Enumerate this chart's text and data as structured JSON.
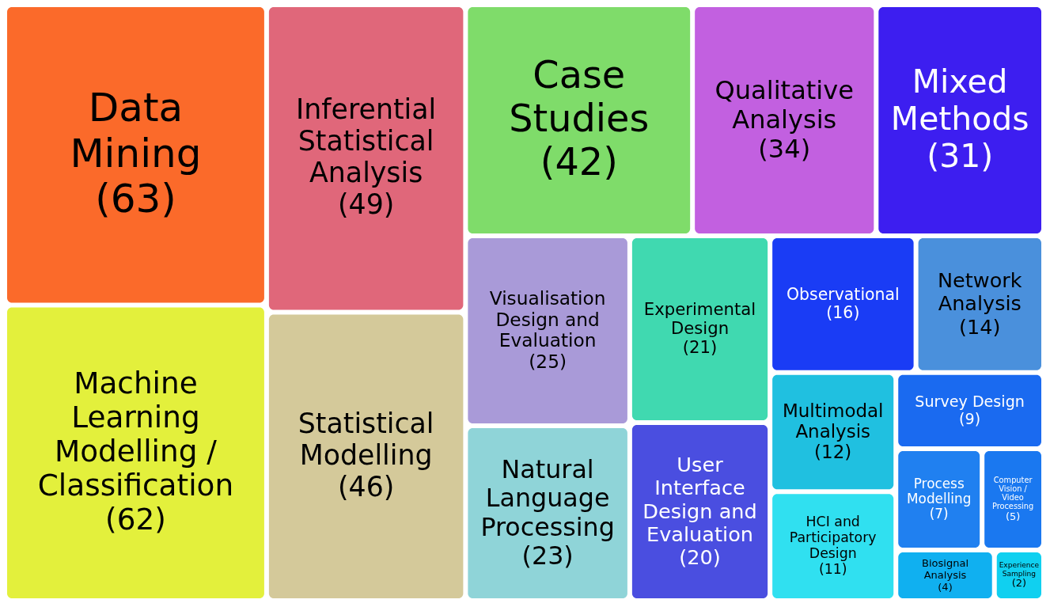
{
  "chart_data": {
    "type": "other",
    "categories": [
      "Data Mining",
      "Machine Learning Modelling / Classification",
      "Inferential Statistical Analysis",
      "Statistical Modelling",
      "Case Studies",
      "Qualitative Analysis",
      "Mixed Methods",
      "Visualisation Design and Evaluation",
      "Natural Language Processing",
      "Experimental Design",
      "User Interface Design and Evaluation",
      "Observational",
      "Network Analysis",
      "Multimodal Analysis",
      "HCI and Participatory Design",
      "Survey Design",
      "Process Modelling",
      "Computer Vision / Video Processing",
      "Biosignal Analysis",
      "Experience Sampling"
    ],
    "value_labels": [
      "(63)",
      "(62)",
      "(49)",
      "(46)",
      "(42)",
      "(34)",
      "(31)",
      "(25)",
      "(23)",
      "(21)",
      "(20)",
      "(16)",
      "(14)",
      "(12)",
      "(11)",
      "(9)",
      "(7)",
      "(5)",
      "(4)",
      "(2)"
    ],
    "values": [
      63,
      62,
      49,
      46,
      42,
      34,
      31,
      25,
      23,
      21,
      20,
      16,
      14,
      12,
      11,
      9,
      7,
      5,
      4,
      2
    ],
    "colors": [
      "#fb6a2a",
      "#e3f03c",
      "#e0677a",
      "#d4c99a",
      "#7fdc6a",
      "#c260e0",
      "#3d1ef0",
      "#a99ad8",
      "#8fd4d8",
      "#40d9b0",
      "#4a4ee0",
      "#1a3cf5",
      "#4a90dc",
      "#20c0e0",
      "#30e0f0",
      "#1a6af0",
      "#2080f0",
      "#1a78f0",
      "#10b0f0",
      "#10d0f0"
    ]
  }
}
